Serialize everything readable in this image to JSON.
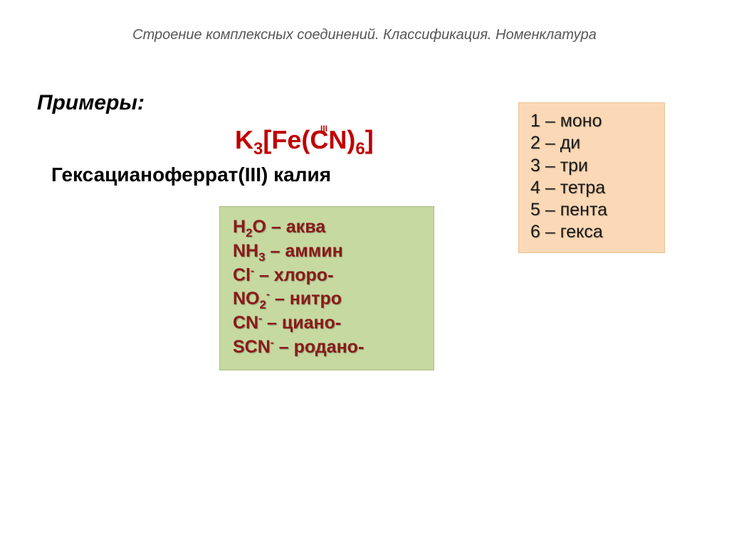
{
  "header": {
    "title": "Строение комплексных соединений. Классификация. Номенклатура"
  },
  "examples_label": "Примеры:",
  "formula": {
    "html": "K<sub>3</sub>[Fe(CN)<sub>6</sub>]",
    "oxidation_state": "III"
  },
  "compound_name": "Гексацианоферрат(III) калия",
  "prefix_box": {
    "background_color": "#fcd9b6",
    "border_color": "#e8c090",
    "text_color": "#1a1a1a",
    "fontsize": 25,
    "lines": [
      "1 – моно",
      "2 – ди",
      "3 – три",
      "4 – тетра",
      "5 – пента",
      "6 – гекса"
    ]
  },
  "ligand_box": {
    "background_color": "#c6d9a0",
    "border_color": "#a8bd82",
    "text_color": "#8a1a1a",
    "fontsize": 25,
    "lines_html": [
      "H<sub>2</sub>O – аква",
      "NH<sub>3</sub> – аммин",
      "Cl<sup>-</sup> – хлоро-",
      "NO<sub>2</sub><sup>-</sup> – нитро",
      "CN<sup>-</sup> – циано-",
      "SCN<sup>-</sup> – родано-"
    ]
  },
  "colors": {
    "page_background": "#ffffff",
    "title_color": "#575757",
    "formula_color": "#c00000",
    "body_text": "#000000"
  }
}
